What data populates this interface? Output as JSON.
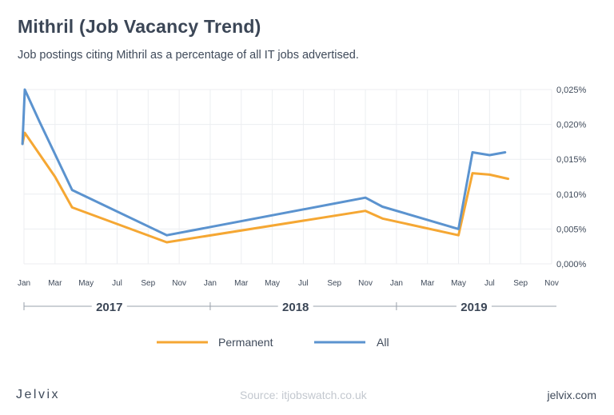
{
  "header": {
    "title": "Mithril (Job Vacancy Trend)",
    "subtitle": "Job postings citing Mithril as a percentage of all IT jobs advertised."
  },
  "footer": {
    "logo": "Jelvix",
    "source": "Source: itjobswatch.co.uk",
    "site": "jelvix.com"
  },
  "colors": {
    "permanent": "#f5a733",
    "all": "#5b93cf",
    "grid": "#eceef1",
    "axis": "#9aa1ab"
  },
  "chart_data": {
    "type": "line",
    "title": "Mithril (Job Vacancy Trend)",
    "x_tick_labels": [
      "Jan",
      "Mar",
      "May",
      "Jul",
      "Sep",
      "Nov",
      "Jan",
      "Mar",
      "May",
      "Jul",
      "Sep",
      "Nov",
      "Jan",
      "Mar",
      "May",
      "Jul",
      "Sep",
      "Nov"
    ],
    "x_tick_months": [
      0,
      2,
      4,
      6,
      8,
      10,
      12,
      14,
      16,
      18,
      20,
      22,
      24,
      26,
      28,
      30,
      32,
      34
    ],
    "years": [
      {
        "label": "2017",
        "month": 5.5
      },
      {
        "label": "2018",
        "month": 17.5
      },
      {
        "label": "2019",
        "month": 29
      }
    ],
    "year_dividers": [
      0,
      12,
      24
    ],
    "y_ticks": [
      0,
      0.005,
      0.01,
      0.015,
      0.02,
      0.025
    ],
    "y_tick_labels": [
      "0,000%",
      "0,005%",
      "0,010%",
      "0,015%",
      "0,020%",
      "0,025%"
    ],
    "ylim": [
      0,
      0.025
    ],
    "xlim": [
      0,
      34
    ],
    "y_axis_position": "right",
    "grid": true,
    "legend_position": "bottom",
    "series": [
      {
        "name": "Permanent",
        "color": "#f5a733",
        "x": [
          -0.1,
          0.05,
          2,
          3.1,
          9.2,
          22,
          23.1,
          28,
          28.9,
          30,
          31.2
        ],
        "y": [
          0.0172,
          0.0188,
          0.0125,
          0.0081,
          0.0031,
          0.0076,
          0.0065,
          0.0041,
          0.013,
          0.0128,
          0.0122
        ]
      },
      {
        "name": "All",
        "color": "#5b93cf",
        "x": [
          -0.1,
          0.05,
          1,
          3.1,
          9.2,
          22,
          23.1,
          28,
          28.9,
          30,
          31
        ],
        "y": [
          0.0172,
          0.025,
          0.0204,
          0.0106,
          0.0041,
          0.0095,
          0.0082,
          0.005,
          0.016,
          0.0156,
          0.016
        ]
      }
    ]
  }
}
